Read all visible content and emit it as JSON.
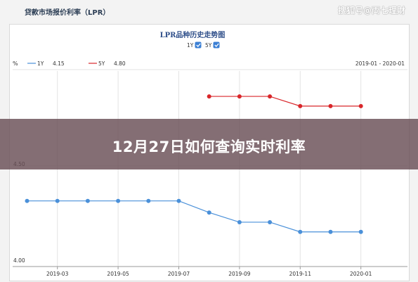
{
  "header": {
    "title": "贷款市场报价利率（LPR）",
    "watermark": "搜狐号@両七理財"
  },
  "overlay": {
    "title": "12月27日如何查询实时利率"
  },
  "chart_data": {
    "type": "line",
    "title": "LPR品种历史走势图",
    "unit_label": "%",
    "legend_checks": [
      {
        "name": "1Y",
        "checked": true
      },
      {
        "name": "5Y",
        "checked": true
      }
    ],
    "date_range": "2019-01 - 2020-01",
    "x": [
      "2019-02",
      "2019-03",
      "2019-04",
      "2019-05",
      "2019-06",
      "2019-07",
      "2019-08",
      "2019-09",
      "2019-10",
      "2019-11",
      "2019-12",
      "2020-01"
    ],
    "x_tick_labels": [
      "2019-03",
      "2019-05",
      "2019-07",
      "2019-09",
      "2019-11",
      "2020-01"
    ],
    "y_tick_labels": [
      "4.50",
      "4.00"
    ],
    "series": [
      {
        "name": "1Y",
        "latest": "4.15",
        "color": "#4a90d9",
        "values": [
          4.31,
          4.31,
          4.31,
          4.31,
          4.31,
          4.31,
          4.25,
          4.2,
          4.2,
          4.15,
          4.15,
          4.15
        ]
      },
      {
        "name": "5Y",
        "latest": "4.80",
        "color": "#d9262a",
        "values": [
          null,
          null,
          null,
          null,
          null,
          null,
          4.85,
          4.85,
          4.85,
          4.8,
          4.8,
          4.8
        ]
      }
    ],
    "grid": true,
    "legend_position": "top-left",
    "colors": {
      "grid": "#e3e3e3",
      "axis_text": "#333333",
      "checkbox": "#3b7fd4"
    }
  }
}
